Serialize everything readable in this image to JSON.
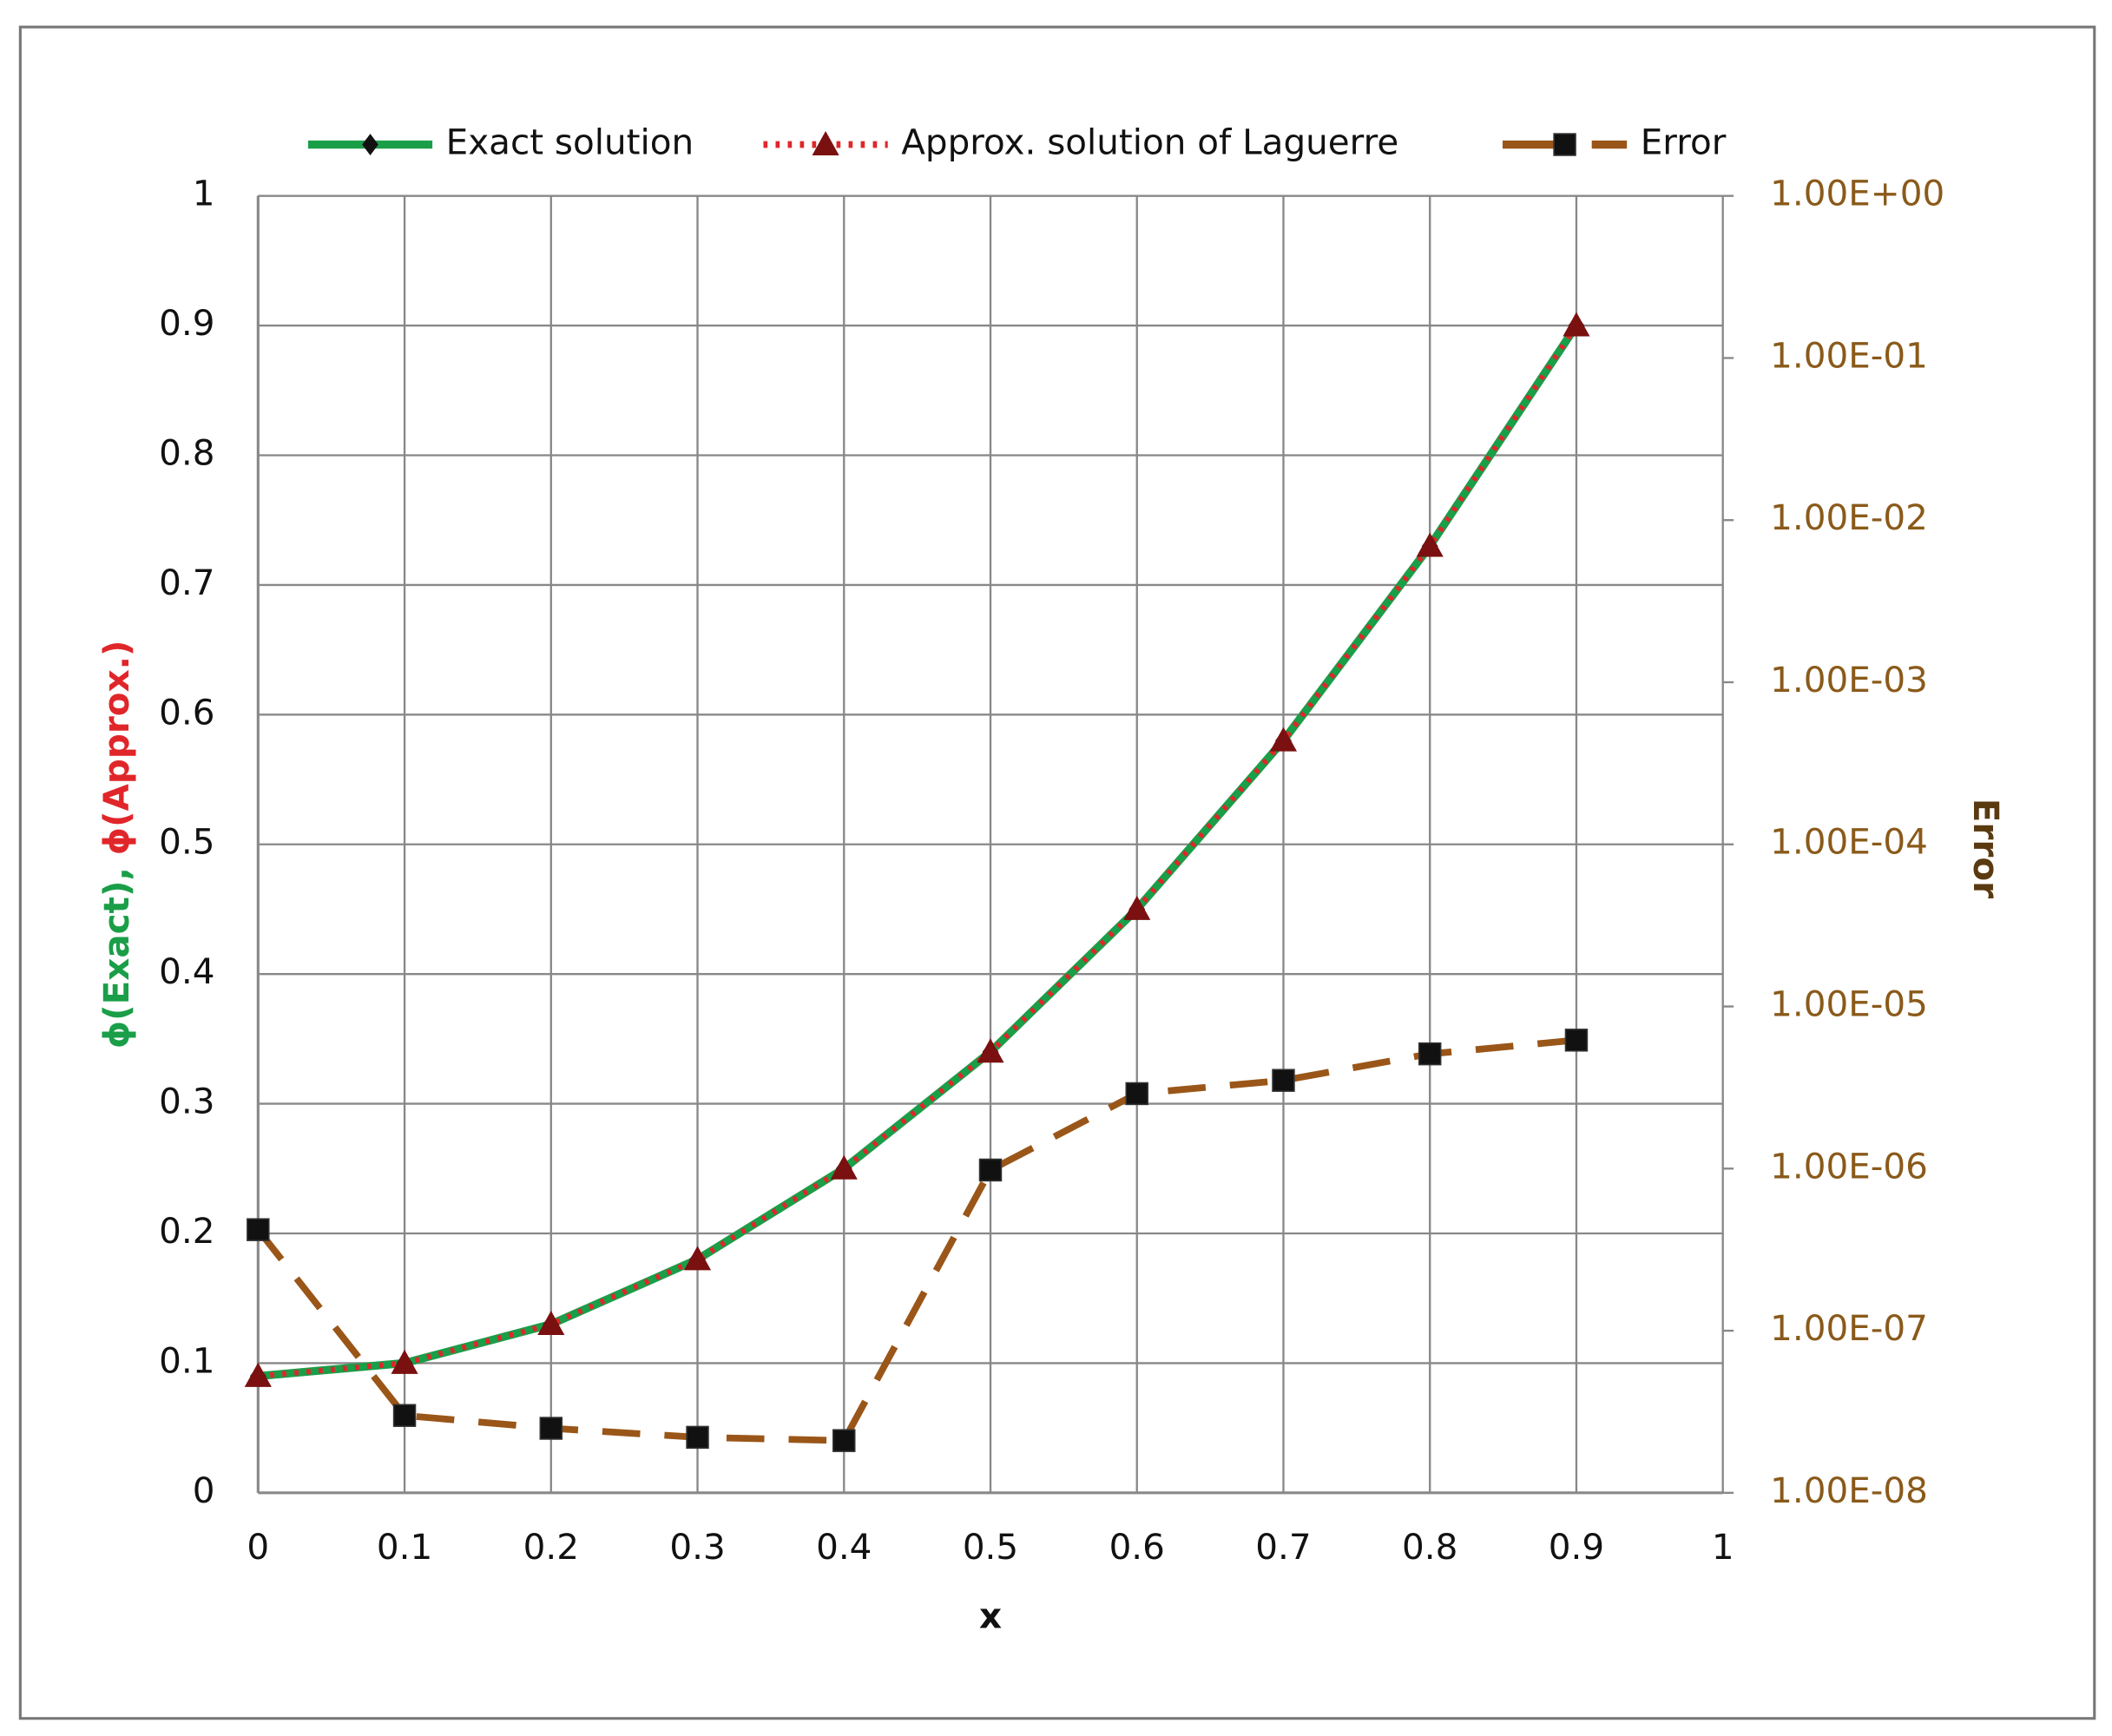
{
  "chart_data": {
    "type": "line",
    "x_label": "x",
    "y_label": [
      "ϕ(Exact),",
      "ϕ(Approx.)"
    ],
    "y2_label": "Error",
    "x": [
      0,
      0.1,
      0.2,
      0.3,
      0.4,
      0.5,
      0.6,
      0.7,
      0.8,
      0.9
    ],
    "series": [
      {
        "name": "Exact solution",
        "color": "#1a9e48",
        "values": [
          0.09,
          0.1,
          0.13,
          0.18,
          0.25,
          0.34,
          0.45,
          0.58,
          0.73,
          0.9
        ]
      },
      {
        "name": "Approx. solution of Laguerre",
        "color": "#e0262a",
        "values": [
          0.09,
          0.1,
          0.13,
          0.18,
          0.25,
          0.34,
          0.45,
          0.58,
          0.73,
          0.9
        ]
      },
      {
        "name": "Error",
        "color": "#9a5618",
        "axis": "y2",
        "values": [
          4.2e-07,
          3e-08,
          2.5e-08,
          2.2e-08,
          2.1e-08,
          9.8e-07,
          2.9e-06,
          3.5e-06,
          5.1e-06,
          6.2e-06
        ]
      }
    ],
    "xlim": [
      0,
      1
    ],
    "xticks": [
      0,
      0.1,
      0.2,
      0.3,
      0.4,
      0.5,
      0.6,
      0.7,
      0.8,
      0.9,
      1
    ],
    "ylim": [
      0,
      1
    ],
    "yticks": [
      0,
      0.1,
      0.2,
      0.3,
      0.4,
      0.5,
      0.6,
      0.7,
      0.8,
      0.9,
      1
    ],
    "y2lim": [
      1e-08,
      1
    ],
    "y2_log": true,
    "y2ticks": [
      {
        "value": 1e-08,
        "label": "1.00E-08"
      },
      {
        "value": 1e-07,
        "label": "1.00E-07"
      },
      {
        "value": 1e-06,
        "label": "1.00E-06"
      },
      {
        "value": 1e-05,
        "label": "1.00E-05"
      },
      {
        "value": 0.0001,
        "label": "1.00E-04"
      },
      {
        "value": 0.001,
        "label": "1.00E-03"
      },
      {
        "value": 0.01,
        "label": "1.00E-02"
      },
      {
        "value": 0.1,
        "label": "1.00E-01"
      },
      {
        "value": 1,
        "label": "1.00E+00"
      }
    ],
    "grid": true,
    "legend": "top"
  }
}
